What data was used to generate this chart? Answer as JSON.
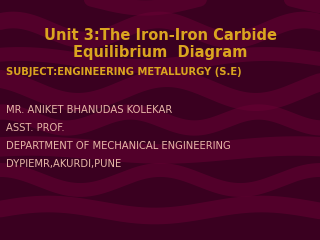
{
  "title_line1": "Unit 3:The Iron-Iron Carbide",
  "title_line2": "Equilibrium  Diagram",
  "title_color": "#DAA520",
  "title_fontsize": 10.5,
  "body_lines": [
    "SUBJECT:ENGINEERING METALLURGY (S.E)",
    "",
    "MR. ANIKET BHANUDAS KOLEKAR",
    "ASST. PROF.",
    "DEPARTMENT OF MECHANICAL ENGINEERING",
    "DYPIEMR,AKURDI,PUNE"
  ],
  "subject_color": "#DAA520",
  "body_color": "#E8B8A8",
  "body_fontsize": 7.2,
  "subject_fontsize": 7.2,
  "bg_color": "#3A0020",
  "wave_color": "#6B0035"
}
